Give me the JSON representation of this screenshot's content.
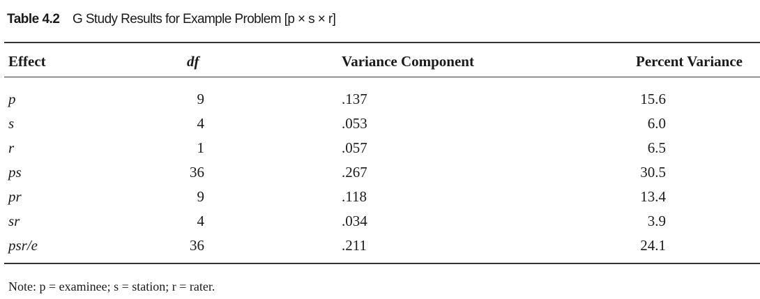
{
  "table": {
    "label": "Table 4.2",
    "title": "G Study Results for Example Problem [p × s × r]",
    "columns": [
      "Effect",
      "df",
      "Variance Component",
      "Percent Variance"
    ],
    "rows": [
      [
        "p",
        "9",
        ".137",
        "15.6"
      ],
      [
        "s",
        "4",
        ".053",
        "6.0"
      ],
      [
        "r",
        "1",
        ".057",
        "6.5"
      ],
      [
        "ps",
        "36",
        ".267",
        "30.5"
      ],
      [
        "pr",
        "9",
        ".118",
        "13.4"
      ],
      [
        "sr",
        "4",
        ".034",
        "3.9"
      ],
      [
        "psr/e",
        "36",
        ".211",
        "24.1"
      ]
    ],
    "note": "Note: p = examinee; s = station; r = rater."
  }
}
